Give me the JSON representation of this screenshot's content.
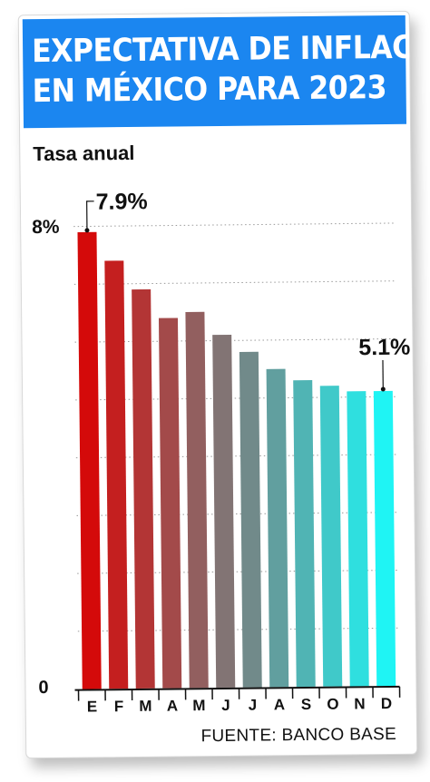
{
  "header": {
    "title_line1": "EXPECTATIVA DE INFLACIÓN",
    "title_line2": "EN MÉXICO PARA 2023"
  },
  "subtitle": "Tasa anual",
  "source": "FUENTE: BANCO BASE",
  "colors": {
    "title_bg": "#1b86f0",
    "bar_start": "#d40a0a",
    "bar_end": "#1ff4f4"
  },
  "chart_data": {
    "type": "bar",
    "categories": [
      "E",
      "F",
      "M",
      "A",
      "M",
      "J",
      "J",
      "A",
      "S",
      "O",
      "N",
      "D"
    ],
    "values": [
      7.9,
      7.4,
      6.9,
      6.4,
      6.5,
      6.1,
      5.8,
      5.5,
      5.3,
      5.2,
      5.1,
      5.1
    ],
    "ylim": [
      0,
      8
    ],
    "y_tick_labels": [
      "0",
      "8%"
    ],
    "annotations": [
      {
        "text": "7.9%",
        "index": 0
      },
      {
        "text": "5.1%",
        "index": 11
      }
    ],
    "grid": "dotted horizontal"
  }
}
